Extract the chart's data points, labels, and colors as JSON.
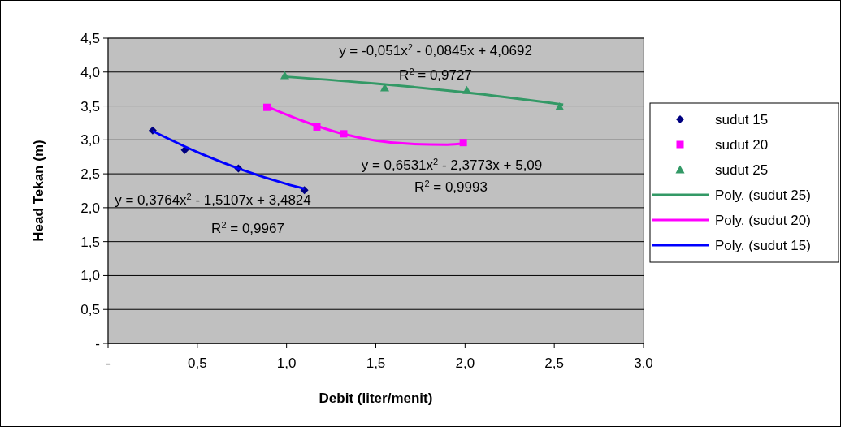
{
  "chart_data": {
    "type": "scatter",
    "xlabel": "Debit (liter/menit)",
    "ylabel": "Head Tekan (m)",
    "xlim": [
      0,
      3
    ],
    "xticks": [
      {
        "value": 0,
        "label": "-"
      },
      {
        "value": 0.5,
        "label": "0,5"
      },
      {
        "value": 1,
        "label": "1,0"
      },
      {
        "value": 1.5,
        "label": "1,5"
      },
      {
        "value": 2,
        "label": "2,0"
      },
      {
        "value": 2.5,
        "label": "2,5"
      },
      {
        "value": 3,
        "label": "3,0"
      }
    ],
    "ylim": [
      0,
      4.5
    ],
    "yticks": [
      {
        "value": 0,
        "label": "-"
      },
      {
        "value": 0.5,
        "label": "0,5"
      },
      {
        "value": 1,
        "label": "1,0"
      },
      {
        "value": 1.5,
        "label": "1,5"
      },
      {
        "value": 2,
        "label": "2,0"
      },
      {
        "value": 2.5,
        "label": "2,5"
      },
      {
        "value": 3,
        "label": "3,0"
      },
      {
        "value": 3.5,
        "label": "3,5"
      },
      {
        "value": 4,
        "label": "4,0"
      },
      {
        "value": 4.5,
        "label": "4,5"
      }
    ],
    "grid": "y",
    "legend": "right",
    "series": [
      {
        "name": "sudut 15",
        "marker": "diamond",
        "color": "#000080",
        "x": [
          0.25,
          0.43,
          0.73,
          1.1
        ],
        "values": [
          3.14,
          2.85,
          2.58,
          2.26
        ]
      },
      {
        "name": "sudut 20",
        "marker": "square",
        "color": "#ff00ff",
        "x": [
          0.89,
          1.17,
          1.32,
          1.99
        ],
        "values": [
          3.48,
          3.19,
          3.09,
          2.96
        ]
      },
      {
        "name": "sudut 25",
        "marker": "triangle",
        "color": "#339966",
        "x": [
          0.99,
          1.55,
          2.01,
          2.53
        ],
        "values": [
          3.95,
          3.77,
          3.73,
          3.49
        ]
      },
      {
        "name": "Poly. (sudut 25)",
        "type": "line",
        "color": "#339966",
        "x": [
          1.0,
          1.5,
          2.0,
          2.55
        ],
        "values": [
          3.93,
          3.83,
          3.7,
          3.52
        ]
      },
      {
        "name": "Poly. (sudut 20)",
        "type": "line",
        "color": "#ff00ff",
        "x": [
          0.9,
          1.1,
          1.3,
          1.5,
          1.7,
          1.9,
          2.0
        ],
        "values": [
          3.48,
          3.27,
          3.1,
          2.99,
          2.94,
          2.93,
          2.95
        ]
      },
      {
        "name": "Poly. (sudut 15)",
        "type": "line",
        "color": "#0000ff",
        "x": [
          0.25,
          0.5,
          0.75,
          1.0,
          1.1
        ],
        "values": [
          3.13,
          2.82,
          2.56,
          2.35,
          2.28
        ]
      }
    ],
    "annotations": [
      "y = -0,051x$^{2}$ - 0,0845x + 4,0692",
      "R$^{2}$ = 0,9727",
      "y = 0,6531x$^{2}$ - 2,3773x + 5,09",
      "R$^{2}$ = 0,9993",
      "y = 0,3764x$^{2}$ - 1,5107x + 3,4824",
      "R$^{2}$ = 0,9967"
    ]
  }
}
